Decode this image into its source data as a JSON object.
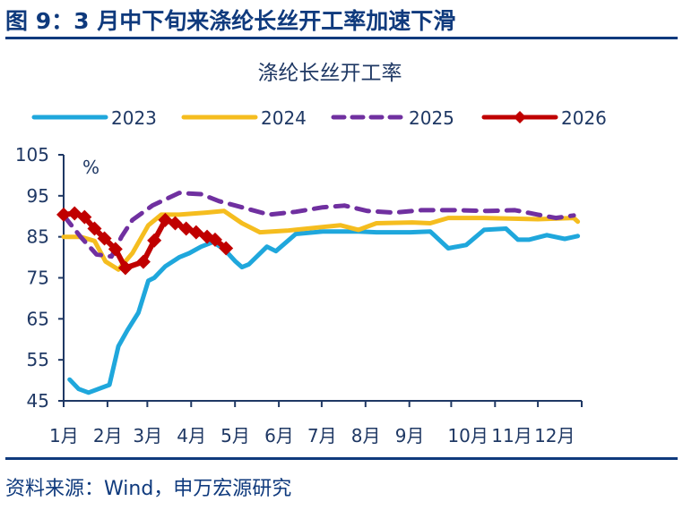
{
  "header": {
    "figure_title": "图 9：3 月中下旬来涤纶长丝开工率加速下滑"
  },
  "footer": {
    "source": "资料来源：Wind，申万宏源研究"
  },
  "chart_data": {
    "type": "line",
    "title": "涤纶长丝开工率",
    "ylabel": "%",
    "xlabel": "",
    "ylim": [
      45,
      105
    ],
    "yticks": [
      45,
      55,
      65,
      75,
      85,
      95,
      105
    ],
    "x_unit": "week of year",
    "xlim": [
      0,
      52
    ],
    "xtick_labels": [
      "1月",
      "2月",
      "3月",
      "4月",
      "5月",
      "6月",
      "7月",
      "8月",
      "9月",
      "10月",
      "11月",
      "12月"
    ],
    "xtick_positions": [
      0,
      4.4,
      8.4,
      12.8,
      17.2,
      21.6,
      25.9,
      30.3,
      34.7,
      38.9,
      43.3,
      47.6,
      52
    ],
    "grid": false,
    "legend_position": "top",
    "series": [
      {
        "name": "2023",
        "color": "#1fa7dc",
        "style": "solid",
        "x": [
          0.6,
          1.5,
          2.5,
          4.6,
          5.5,
          6.4,
          7.5,
          8.5,
          9.1,
          10.2,
          11.6,
          12.6,
          13.8,
          15.0,
          16.1,
          17.2,
          17.9,
          18.6,
          20.4,
          21.3,
          23.3,
          26.0,
          29.6,
          31.4,
          34.8,
          36.8,
          38.6,
          40.4,
          42.2,
          44.4,
          45.6,
          46.7,
          48.5,
          50.3,
          51.6
        ],
        "y": [
          50.2,
          47.9,
          47.0,
          48.9,
          58.3,
          62.2,
          66.5,
          74.3,
          75.0,
          77.8,
          80.0,
          81.0,
          82.6,
          83.7,
          82.0,
          79.1,
          77.6,
          78.3,
          82.6,
          81.5,
          85.7,
          86.3,
          86.3,
          86.1,
          86.1,
          86.3,
          82.2,
          83.0,
          86.7,
          87.0,
          84.3,
          84.3,
          85.4,
          84.5,
          85.2
        ]
      },
      {
        "name": "2024",
        "color": "#f5bd1f",
        "style": "solid",
        "x": [
          0,
          1.7,
          3.1,
          4.2,
          5.5,
          6.9,
          8.5,
          9.8,
          11.6,
          14.3,
          16.1,
          17.9,
          19.7,
          22.4,
          26.0,
          27.8,
          29.6,
          31.4,
          35.0,
          36.8,
          38.6,
          42.2,
          47.6,
          51.2,
          51.6
        ],
        "y": [
          85.0,
          85.0,
          84.0,
          79.0,
          77.0,
          81.0,
          87.8,
          90.4,
          90.4,
          90.9,
          91.3,
          88.3,
          86.1,
          86.5,
          87.4,
          87.8,
          86.7,
          88.3,
          88.5,
          88.3,
          89.6,
          89.6,
          89.3,
          89.6,
          88.7
        ]
      },
      {
        "name": "2025",
        "color": "#7030a0",
        "style": "dashed",
        "x": [
          0,
          1.7,
          3.3,
          4.8,
          5.8,
          6.9,
          8.9,
          11.6,
          13.8,
          15.6,
          17.9,
          20.6,
          23.3,
          26.0,
          28.2,
          30.5,
          33.2,
          35.9,
          39.5,
          42.6,
          45.3,
          47.6,
          49.4,
          51.2
        ],
        "y": [
          90.2,
          85.0,
          80.7,
          80.2,
          85.0,
          89.1,
          92.6,
          95.7,
          95.4,
          93.7,
          92.2,
          90.4,
          91.1,
          92.2,
          92.6,
          91.3,
          90.9,
          91.5,
          91.5,
          91.3,
          91.5,
          90.4,
          89.6,
          90.2
        ]
      },
      {
        "name": "2026",
        "color": "#c00000",
        "style": "solid-diamond",
        "x": [
          0,
          1.1,
          2.1,
          3.1,
          4.1,
          5.2,
          6.2,
          8.0,
          9.1,
          10.2,
          11.2,
          12.3,
          13.3,
          14.4,
          15.2,
          16.3
        ],
        "y": [
          90.4,
          90.7,
          89.8,
          87.0,
          84.6,
          82.0,
          77.4,
          78.9,
          84.1,
          89.1,
          88.3,
          87.0,
          86.1,
          85.0,
          84.3,
          82.2
        ]
      }
    ]
  }
}
